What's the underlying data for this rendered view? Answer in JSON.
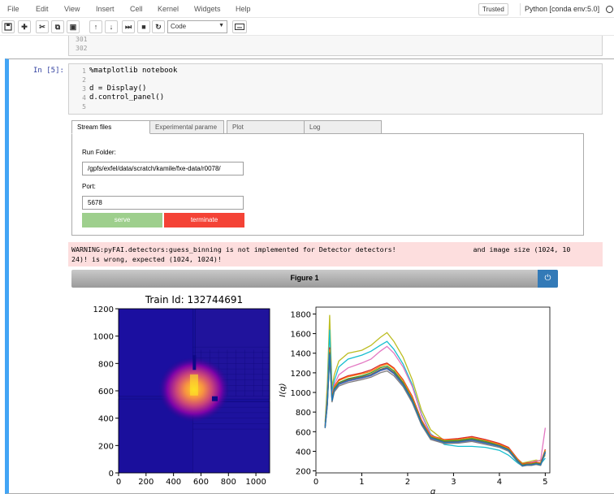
{
  "menu": {
    "items": [
      "File",
      "Edit",
      "View",
      "Insert",
      "Cell",
      "Kernel",
      "Widgets",
      "Help"
    ],
    "trusted": "Trusted",
    "kernel": "Python [conda env:5.0]"
  },
  "toolbar": {
    "icons": [
      "save-icon",
      "plus-icon",
      "cut-icon",
      "copy-icon",
      "paste-icon",
      "arrow-up-icon",
      "arrow-down-icon",
      "step-forward-icon",
      "stop-icon",
      "restart-icon"
    ],
    "cell_type": "Code",
    "keyboard_icon": "keyboard-icon"
  },
  "previous_cell": {
    "line_numbers": [
      "301",
      "302"
    ]
  },
  "cell": {
    "prompt": "In [5]:",
    "line_numbers": [
      "1",
      "2",
      "3",
      "4",
      "5"
    ],
    "lines": [
      "%matplotlib notebook",
      "",
      "d = Display()",
      "d.control_panel()",
      ""
    ]
  },
  "widget": {
    "tabs": [
      "Stream files",
      "Experimental parame",
      "Plot",
      "Log"
    ],
    "run_folder_label": "Run Folder:",
    "run_folder_value": "/gpfs/exfel/data/scratch/kamile/fxe-data/r0078/",
    "port_label": "Port:",
    "port_value": "5678",
    "serve": "serve",
    "terminate": "terminate"
  },
  "warning": {
    "line1": "WARNING:pyFAI.detectors:guess_binning is not implemented for Detector detectors!                   and image size (1024, 10",
    "line2": "24)! is wrong, expected (1024, 1024)!"
  },
  "figure": {
    "title": "Figure 1",
    "power_icon": "power-icon"
  },
  "chart_data": [
    {
      "type": "heatmap",
      "title": "Train Id: 132744691",
      "xlabel": "",
      "ylabel": "",
      "xlim": [
        0,
        1100
      ],
      "ylim": [
        0,
        1200
      ],
      "xticks": [
        0,
        200,
        400,
        600,
        800,
        1000
      ],
      "yticks": [
        0,
        200,
        400,
        600,
        800,
        1000,
        1200
      ],
      "colormap": "plasma",
      "peak_center": [
        550,
        610
      ]
    },
    {
      "type": "line",
      "title": "",
      "xlabel": "q",
      "ylabel": "I(q)",
      "xlim": [
        0,
        5.1
      ],
      "ylim": [
        180,
        1870
      ],
      "xticks": [
        0,
        1,
        2,
        3,
        4,
        5
      ],
      "yticks": [
        200,
        400,
        600,
        800,
        1000,
        1200,
        1400,
        1600,
        1800
      ],
      "x": [
        0.2,
        0.25,
        0.3,
        0.35,
        0.4,
        0.5,
        0.7,
        1.0,
        1.2,
        1.4,
        1.55,
        1.7,
        1.9,
        2.1,
        2.3,
        2.5,
        2.8,
        3.1,
        3.4,
        3.7,
        4.0,
        4.2,
        4.4,
        4.5,
        4.6,
        4.7,
        4.8,
        4.9,
        5.0
      ],
      "series": [
        {
          "color": "#bcbd22",
          "values": [
            700,
            1100,
            1790,
            1050,
            1180,
            1320,
            1400,
            1430,
            1480,
            1560,
            1610,
            1520,
            1360,
            1130,
            820,
            620,
            510,
            510,
            520,
            500,
            470,
            410,
            320,
            280,
            290,
            300,
            310,
            300,
            360
          ]
        },
        {
          "color": "#17becf",
          "values": [
            680,
            1000,
            1640,
            1000,
            1120,
            1260,
            1340,
            1380,
            1420,
            1480,
            1520,
            1440,
            1290,
            1080,
            780,
            580,
            470,
            450,
            450,
            440,
            410,
            360,
            280,
            250,
            260,
            270,
            280,
            270,
            330
          ]
        },
        {
          "color": "#e377c2",
          "values": [
            660,
            950,
            1390,
            960,
            1080,
            1180,
            1250,
            1300,
            1340,
            1420,
            1470,
            1400,
            1260,
            1060,
            770,
            570,
            500,
            500,
            520,
            500,
            470,
            430,
            320,
            270,
            280,
            290,
            300,
            310,
            640
          ]
        },
        {
          "color": "#d62728",
          "values": [
            660,
            930,
            1460,
            950,
            1060,
            1130,
            1170,
            1200,
            1230,
            1280,
            1300,
            1250,
            1130,
            960,
            720,
            560,
            520,
            530,
            550,
            520,
            480,
            440,
            320,
            270,
            280,
            280,
            290,
            280,
            420
          ]
        },
        {
          "color": "#ff7f0e",
          "values": [
            655,
            920,
            1440,
            945,
            1055,
            1120,
            1160,
            1190,
            1215,
            1265,
            1290,
            1240,
            1120,
            950,
            710,
            555,
            515,
            520,
            540,
            510,
            470,
            430,
            315,
            265,
            275,
            275,
            285,
            275,
            410
          ]
        },
        {
          "color": "#2ca02c",
          "values": [
            650,
            900,
            1410,
            930,
            1040,
            1100,
            1140,
            1170,
            1200,
            1250,
            1270,
            1220,
            1100,
            930,
            700,
            545,
            505,
            510,
            530,
            500,
            460,
            420,
            305,
            260,
            270,
            270,
            280,
            270,
            400
          ]
        },
        {
          "color": "#8c564b",
          "values": [
            645,
            890,
            1400,
            920,
            1030,
            1090,
            1130,
            1160,
            1185,
            1235,
            1255,
            1205,
            1090,
            920,
            690,
            540,
            495,
            500,
            520,
            490,
            455,
            415,
            300,
            255,
            265,
            265,
            275,
            265,
            395
          ]
        },
        {
          "color": "#9467bd",
          "values": [
            640,
            880,
            1380,
            910,
            1020,
            1080,
            1115,
            1145,
            1170,
            1220,
            1240,
            1190,
            1075,
            910,
            680,
            530,
            485,
            490,
            510,
            480,
            450,
            410,
            295,
            250,
            260,
            260,
            270,
            260,
            390
          ]
        },
        {
          "color": "#7f7f7f",
          "values": [
            635,
            870,
            1360,
            900,
            1005,
            1065,
            1100,
            1130,
            1155,
            1200,
            1220,
            1170,
            1060,
            895,
            670,
            520,
            478,
            482,
            500,
            470,
            440,
            400,
            290,
            248,
            255,
            255,
            265,
            255,
            380
          ]
        },
        {
          "color": "#1f77b4",
          "values": [
            640,
            885,
            1390,
            915,
            1025,
            1085,
            1120,
            1150,
            1175,
            1225,
            1245,
            1195,
            1080,
            915,
            685,
            535,
            490,
            495,
            515,
            485,
            452,
            412,
            298,
            252,
            262,
            262,
            272,
            262,
            392
          ]
        }
      ]
    }
  ]
}
